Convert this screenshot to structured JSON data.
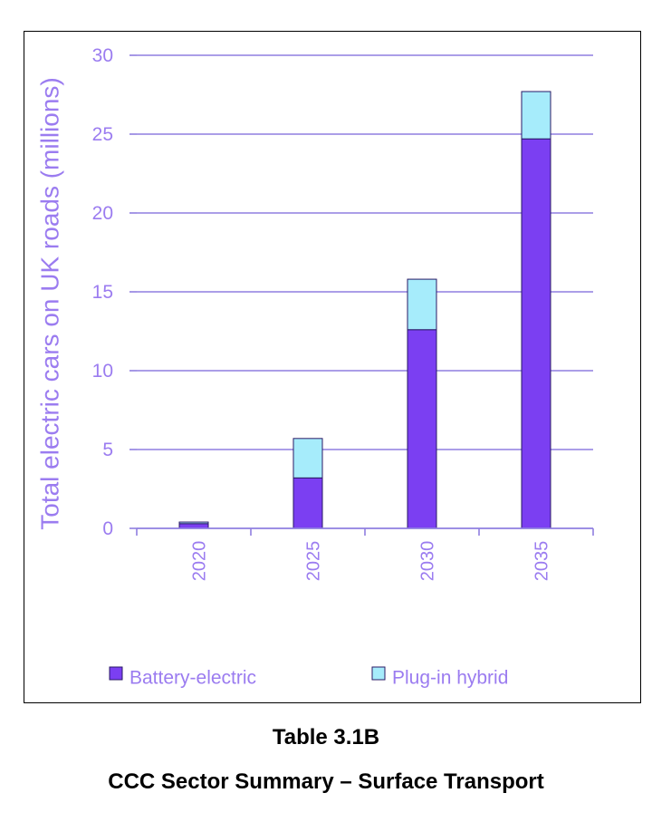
{
  "colors": {
    "axis_text": "#9b7cf0",
    "grid": "#8f7fe0",
    "battery_electric": "#7b3ff2",
    "plug_in_hybrid": "#a6ecfb",
    "bar_outline": "#2a1a66"
  },
  "chart_data": {
    "type": "bar",
    "stacked": true,
    "categories": [
      "2020",
      "2025",
      "2030",
      "2035"
    ],
    "series": [
      {
        "name": "Battery-electric",
        "values": [
          0.3,
          3.2,
          12.6,
          24.7
        ]
      },
      {
        "name": "Plug-in hybrid",
        "values": [
          0.1,
          2.5,
          3.2,
          3.0
        ]
      }
    ],
    "ylabel": "Total electric cars on UK roads (millions)",
    "ylim": [
      0,
      30
    ],
    "yticks": [
      "0",
      "5",
      "10",
      "15",
      "20",
      "25",
      "30"
    ],
    "grid": true,
    "legend_position": "bottom"
  },
  "caption": {
    "title": "Table 3.1B",
    "subtitle": "CCC Sector Summary – Surface Transport"
  }
}
